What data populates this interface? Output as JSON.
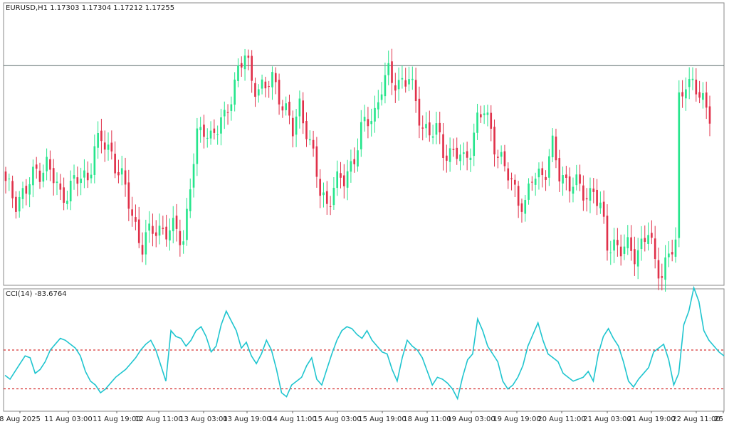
{
  "symbol_header": "EURUSD,H1  1.17303 1.17304 1.17212 1.17255",
  "indicator_header": "CCI(14) -83.6764",
  "colors": {
    "bull": "#26e58c",
    "bear": "#e0314a",
    "cci_line": "#1fc5cf",
    "level_line": "#cc0000",
    "price_line": "#5a6a6a",
    "frame": "#888888"
  },
  "chart_data": [
    {
      "type": "candlestick",
      "title": "EURUSD,H1  1.17303 1.17304 1.17212 1.17255",
      "ylim": [
        1.1585,
        1.1765
      ],
      "current_price_line": 1.1725,
      "x_tick_labels": [
        "8 Aug 2025",
        "11 Aug 03:00",
        "11 Aug 19:00",
        "12 Aug 11:00",
        "13 Aug 03:00",
        "13 Aug 19:00",
        "14 Aug 11:00",
        "15 Aug 03:00",
        "15 Aug 19:00",
        "18 Aug 11:00",
        "19 Aug 03:00",
        "19 Aug 19:00",
        "20 Aug 11:00",
        "21 Aug 03:00",
        "21 Aug 19:00",
        "22 Aug 11:00",
        "25"
      ],
      "close_path": [
        [
          0,
          1.1648
        ],
        [
          3,
          1.164
        ],
        [
          6,
          1.1645
        ],
        [
          9,
          1.1658
        ],
        [
          12,
          1.1662
        ],
        [
          16,
          1.1642
        ],
        [
          20,
          1.165
        ],
        [
          24,
          1.1655
        ],
        [
          26,
          1.1673
        ],
        [
          28,
          1.1676
        ],
        [
          31,
          1.167
        ],
        [
          34,
          1.1652
        ],
        [
          37,
          1.163
        ],
        [
          40,
          1.161
        ],
        [
          43,
          1.162
        ],
        [
          46,
          1.1622
        ],
        [
          48,
          1.1618
        ],
        [
          50,
          1.162
        ],
        [
          52,
          1.1614
        ],
        [
          54,
          1.165
        ],
        [
          56,
          1.1677
        ],
        [
          58,
          1.1686
        ],
        [
          60,
          1.1681
        ],
        [
          62,
          1.1684
        ],
        [
          64,
          1.169
        ],
        [
          66,
          1.1708
        ],
        [
          68,
          1.1722
        ],
        [
          70,
          1.173
        ],
        [
          72,
          1.1716
        ],
        [
          74,
          1.1712
        ],
        [
          76,
          1.171
        ],
        [
          78,
          1.1716
        ],
        [
          80,
          1.1708
        ],
        [
          82,
          1.1696
        ],
        [
          84,
          1.1682
        ],
        [
          86,
          1.17
        ],
        [
          88,
          1.1686
        ],
        [
          90,
          1.1665
        ],
        [
          92,
          1.1644
        ],
        [
          94,
          1.1638
        ],
        [
          96,
          1.1648
        ],
        [
          99,
          1.1652
        ],
        [
          102,
          1.1668
        ],
        [
          104,
          1.1682
        ],
        [
          106,
          1.169
        ],
        [
          108,
          1.1696
        ],
        [
          110,
          1.1712
        ],
        [
          112,
          1.1718
        ],
        [
          113,
          1.1715
        ],
        [
          116,
          1.1716
        ],
        [
          118,
          1.1716
        ],
        [
          120,
          1.17
        ],
        [
          122,
          1.1688
        ],
        [
          124,
          1.1682
        ],
        [
          126,
          1.1682
        ],
        [
          128,
          1.1672
        ],
        [
          130,
          1.167
        ],
        [
          132,
          1.1668
        ],
        [
          134,
          1.1663
        ],
        [
          136,
          1.1675
        ],
        [
          138,
          1.169
        ],
        [
          140,
          1.1695
        ],
        [
          142,
          1.1684
        ],
        [
          144,
          1.167
        ],
        [
          146,
          1.1658
        ],
        [
          148,
          1.165
        ],
        [
          150,
          1.1642
        ],
        [
          152,
          1.1635
        ],
        [
          154,
          1.1652
        ],
        [
          158,
          1.166
        ],
        [
          160,
          1.1672
        ],
        [
          162,
          1.1655
        ],
        [
          164,
          1.1653
        ],
        [
          166,
          1.165
        ],
        [
          168,
          1.1645
        ],
        [
          170,
          1.1642
        ],
        [
          172,
          1.1648
        ],
        [
          174,
          1.1632
        ],
        [
          176,
          1.161
        ],
        [
          178,
          1.1613
        ],
        [
          180,
          1.1608
        ],
        [
          184,
          1.1606
        ],
        [
          186,
          1.1612
        ],
        [
          188,
          1.1618
        ],
        [
          190,
          1.1598
        ],
        [
          192,
          1.1595
        ],
        [
          194,
          1.1604
        ],
        [
          196,
          1.161
        ],
        [
          197,
          1.1702
        ],
        [
          199,
          1.1718
        ],
        [
          201,
          1.1712
        ],
        [
          203,
          1.1704
        ],
        [
          206,
          1.1697
        ]
      ]
    },
    {
      "type": "line",
      "title": "CCI(14) -83.6764",
      "levels": [
        100,
        -100
      ],
      "ylim": [
        -200,
        400
      ],
      "values": [
        -30,
        -50,
        -10,
        30,
        70,
        60,
        -20,
        0,
        40,
        100,
        130,
        160,
        150,
        130,
        110,
        70,
        -10,
        -60,
        -80,
        -120,
        -100,
        -70,
        -40,
        -20,
        0,
        30,
        60,
        100,
        130,
        150,
        100,
        20,
        -60,
        200,
        170,
        160,
        120,
        150,
        200,
        220,
        170,
        90,
        120,
        230,
        300,
        250,
        200,
        110,
        140,
        70,
        30,
        80,
        150,
        100,
        0,
        -120,
        -140,
        -80,
        -60,
        -40,
        20,
        60,
        -50,
        -80,
        0,
        80,
        150,
        200,
        220,
        210,
        180,
        160,
        200,
        150,
        120,
        90,
        80,
        0,
        -60,
        60,
        150,
        120,
        100,
        60,
        -10,
        -80,
        -40,
        -50,
        -70,
        -100,
        -150,
        -40,
        50,
        80,
        260,
        200,
        120,
        80,
        40,
        -60,
        -100,
        -80,
        -40,
        20,
        120,
        180,
        240,
        150,
        80,
        60,
        40,
        -20,
        -40,
        -60,
        -50,
        -40,
        -10,
        -60,
        80,
        170,
        210,
        160,
        120,
        40,
        -60,
        -90,
        -50,
        -20,
        10,
        90,
        110,
        130,
        50,
        -80,
        -20,
        230,
        300,
        420,
        350,
        200,
        150,
        120,
        90,
        70
      ]
    }
  ]
}
